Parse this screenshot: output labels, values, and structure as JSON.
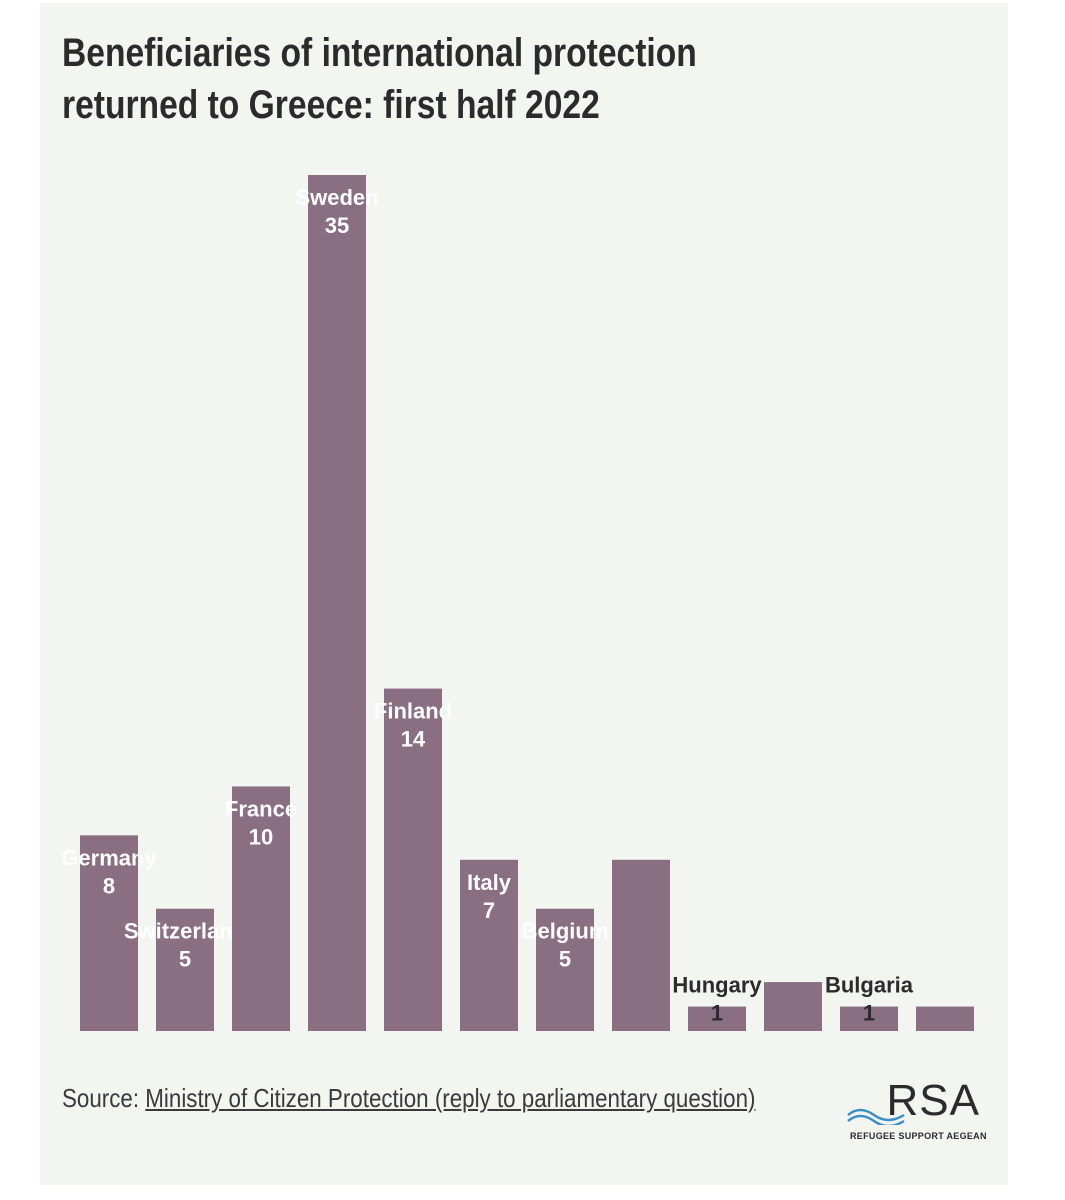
{
  "chart_data": {
    "type": "bar",
    "title_line1": "Beneficiaries of international protection",
    "title_line2": "returned to Greece: first half 2022",
    "categories": [
      "Germany",
      "Switzerland",
      "France",
      "Sweden",
      "Finland",
      "Italy",
      "Belgium",
      "",
      "Hungary",
      "",
      "Bulgaria",
      ""
    ],
    "values": [
      8,
      5,
      10,
      35,
      14,
      7,
      5,
      7,
      1,
      2,
      1,
      1
    ],
    "labels": [
      {
        "name": "Germany",
        "value": "8"
      },
      {
        "name": "Switzerland",
        "value": "5"
      },
      {
        "name": "France",
        "value": "10"
      },
      {
        "name": "Sweden",
        "value": "35"
      },
      {
        "name": "Finland",
        "value": "14"
      },
      {
        "name": "Italy",
        "value": "7"
      },
      {
        "name": "Belgium",
        "value": "5"
      },
      null,
      {
        "name": "Hungary",
        "value": "1"
      },
      null,
      {
        "name": "Bulgaria",
        "value": "1"
      },
      null
    ],
    "ylim": [
      0,
      35
    ],
    "bar_color": "#8a6e82",
    "xlabel": "",
    "ylabel": "",
    "grid": false
  },
  "source": {
    "prefix": "Source:",
    "link_text": "Ministry of Citizen Protection (reply to parliamentary question)"
  },
  "logo": {
    "text": "RSA",
    "subtitle": "REFUGEE SUPPORT AEGEAN"
  }
}
